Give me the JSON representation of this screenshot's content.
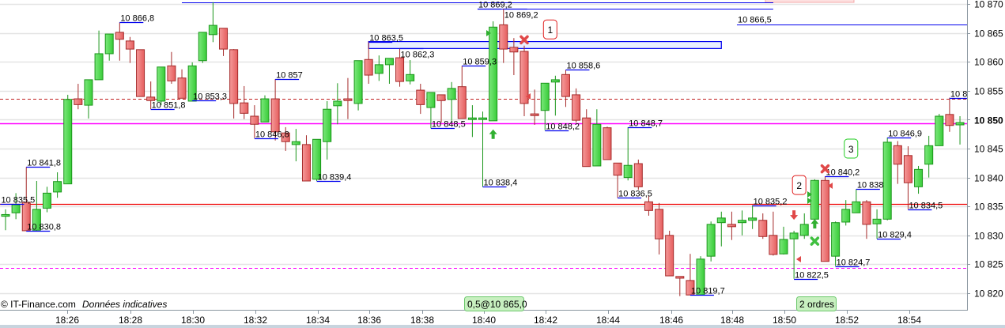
{
  "chart_data": {
    "type": "candlestick",
    "title": "",
    "ylim": [
      10817,
      10870.5
    ],
    "grid": true,
    "y_ticks": [
      "10 870",
      "10 865",
      "10 860",
      "10 855",
      "10 850",
      "10 845",
      "10 840",
      "10 835",
      "10 830",
      "10 825",
      "10 820"
    ],
    "y_tick_values": [
      10870,
      10865,
      10860,
      10855,
      10850,
      10845,
      10840,
      10835,
      10830,
      10825,
      10820
    ],
    "current_price_label": "10 850",
    "x_ticks": [
      "18:26",
      "18:28",
      "18:30",
      "18:32",
      "18:34",
      "18:36",
      "18:38",
      "18:40",
      "18:42",
      "18:44",
      "18:46",
      "18:48",
      "18:50",
      "18:52",
      "18:54"
    ],
    "candles_ohlc": [
      [
        10833.3,
        10834.5,
        10830.9,
        10833.6
      ],
      [
        10833.9,
        10837.3,
        10832.8,
        10835.3
      ],
      [
        10835.7,
        10841.8,
        10830.8,
        10830.8
      ],
      [
        10830.9,
        10839.4,
        10830.8,
        10834.5
      ],
      [
        10834.7,
        10838.4,
        10834.0,
        10837.3
      ],
      [
        10837.5,
        10840.9,
        10836.5,
        10839.3
      ],
      [
        10838.9,
        10854.3,
        10838.9,
        10853.5
      ],
      [
        10853.6,
        10856.2,
        10851.8,
        10852.6
      ],
      [
        10852.5,
        10856.9,
        10850.2,
        10856.9
      ],
      [
        10856.9,
        10865.4,
        10856.9,
        10861.4
      ],
      [
        10861.4,
        10864.8,
        10860.2,
        10864.8
      ],
      [
        10865.1,
        10866.8,
        10860.2,
        10863.9
      ],
      [
        10863.6,
        10864.3,
        10859.8,
        10862.2
      ],
      [
        10862.1,
        10862.1,
        10854.0,
        10854.0
      ],
      [
        10853.9,
        10856.6,
        10851.8,
        10853.3
      ],
      [
        10853.2,
        10859.1,
        10852.5,
        10859.1
      ],
      [
        10859.3,
        10861.7,
        10856.2,
        10856.7
      ],
      [
        10857.2,
        10858.7,
        10853.7,
        10853.7
      ],
      [
        10853.2,
        10859.9,
        10853.2,
        10859.3
      ],
      [
        10860.2,
        10865.1,
        10859.8,
        10865.1
      ],
      [
        10864.7,
        10870.3,
        10863.4,
        10866.3
      ],
      [
        10865.8,
        10865.8,
        10861.0,
        10862.2
      ],
      [
        10862.1,
        10862.2,
        10850.2,
        10852.8
      ],
      [
        10852.9,
        10855.8,
        10850.1,
        10851.1
      ],
      [
        10850.6,
        10852.5,
        10846.8,
        10849.2
      ],
      [
        10849.6,
        10854.2,
        10849.6,
        10853.6
      ],
      [
        10853.6,
        10857.0,
        10846.4,
        10847.9
      ],
      [
        10847.7,
        10848.7,
        10844.6,
        10846.2
      ],
      [
        10845.7,
        10848.4,
        10842.8,
        10846.2
      ],
      [
        10845.7,
        10847.3,
        10839.4,
        10839.4
      ],
      [
        10839.7,
        10846.6,
        10839.4,
        10846.6
      ],
      [
        10846.2,
        10853.2,
        10843.1,
        10851.8
      ],
      [
        10852.4,
        10856.3,
        10849.2,
        10853.2
      ],
      [
        10853.6,
        10857.2,
        10850.1,
        10853.3
      ],
      [
        10852.8,
        10860.2,
        10851.6,
        10860.2
      ],
      [
        10860.4,
        10863.5,
        10856.2,
        10857.7
      ],
      [
        10858.0,
        10861.1,
        10856.7,
        10859.5
      ],
      [
        10859.5,
        10860.6,
        10856.2,
        10860.6
      ],
      [
        10860.7,
        10862.3,
        10855.7,
        10856.6
      ],
      [
        10856.7,
        10860.3,
        10856.1,
        10857.8
      ],
      [
        10855.1,
        10856.2,
        10851.0,
        10852.6
      ],
      [
        10852.1,
        10854.7,
        10848.5,
        10854.7
      ],
      [
        10854.3,
        10854.3,
        10849.5,
        10853.3
      ],
      [
        10853.5,
        10856.5,
        10849.8,
        10855.4
      ],
      [
        10855.7,
        10859.3,
        10850.2,
        10850.2
      ],
      [
        10850.1,
        10852.5,
        10847.0,
        10850.3
      ],
      [
        10850.1,
        10851.4,
        10838.4,
        10850.3
      ],
      [
        10849.8,
        10867.0,
        10849.8,
        10866.0
      ],
      [
        10866.4,
        10869.2,
        10859.8,
        10862.2
      ],
      [
        10862.5,
        10864.1,
        10857.7,
        10861.7
      ],
      [
        10861.8,
        10862.8,
        10850.6,
        10852.8
      ],
      [
        10851.0,
        10855.2,
        10849.1,
        10850.7
      ],
      [
        10851.6,
        10856.3,
        10848.2,
        10856.3
      ],
      [
        10856.5,
        10857.6,
        10850.7,
        10856.9
      ],
      [
        10857.8,
        10858.6,
        10852.2,
        10854.0
      ],
      [
        10854.3,
        10855.4,
        10849.5,
        10849.9
      ],
      [
        10850.3,
        10851.8,
        10841.9,
        10841.9
      ],
      [
        10842.0,
        10851.8,
        10842.0,
        10849.2
      ],
      [
        10848.6,
        10848.8,
        10843.1,
        10843.1
      ],
      [
        10842.5,
        10842.5,
        10836.5,
        10840.4
      ],
      [
        10840.0,
        10848.7,
        10839.5,
        10842.1
      ],
      [
        10842.4,
        10843.1,
        10837.9,
        10838.4
      ],
      [
        10835.8,
        10836.8,
        10833.4,
        10834.3
      ],
      [
        10834.5,
        10835.6,
        10826.7,
        10829.4
      ],
      [
        10830.0,
        10830.8,
        10823.0,
        10823.0
      ],
      [
        10822.9,
        10822.9,
        10819.5,
        10822.6
      ],
      [
        10822.2,
        10826.8,
        10819.7,
        10819.7
      ],
      [
        10819.7,
        10826.4,
        10819.7,
        10825.9
      ],
      [
        10826.4,
        10832.4,
        10825.5,
        10831.9
      ],
      [
        10832.2,
        10834.1,
        10828.1,
        10833.0
      ],
      [
        10831.9,
        10834.1,
        10829.2,
        10831.5
      ],
      [
        10832.2,
        10834.3,
        10830.0,
        10832.6
      ],
      [
        10832.6,
        10835.2,
        10831.1,
        10833.0
      ],
      [
        10832.6,
        10833.8,
        10829.4,
        10829.8
      ],
      [
        10830.0,
        10834.1,
        10826.5,
        10826.7
      ],
      [
        10826.8,
        10831.5,
        10826.7,
        10829.3
      ],
      [
        10829.4,
        10830.8,
        10822.5,
        10830.4
      ],
      [
        10830.0,
        10833.8,
        10829.4,
        10831.9
      ],
      [
        10832.8,
        10839.7,
        10832.8,
        10839.5
      ],
      [
        10839.5,
        10840.2,
        10825.5,
        10825.5
      ],
      [
        10826.4,
        10832.4,
        10824.7,
        10832.2
      ],
      [
        10832.3,
        10836.1,
        10831.7,
        10834.5
      ],
      [
        10833.9,
        10838.0,
        10833.9,
        10835.8
      ],
      [
        10835.8,
        10836.1,
        10829.4,
        10831.9
      ],
      [
        10832.0,
        10834.5,
        10829.4,
        10832.8
      ],
      [
        10832.8,
        10846.9,
        10832.6,
        10846.1
      ],
      [
        10845.5,
        10846.3,
        10838.9,
        10842.3
      ],
      [
        10843.8,
        10845.4,
        10834.5,
        10839.1
      ],
      [
        10838.4,
        10842.0,
        10837.2,
        10841.4
      ],
      [
        10842.3,
        10847.2,
        10840.0,
        10845.5
      ],
      [
        10845.5,
        10851.0,
        10845.5,
        10850.6
      ],
      [
        10850.9,
        10853.8,
        10847.9,
        10849.0
      ],
      [
        10849.1,
        10850.6,
        10845.7,
        10849.5
      ]
    ],
    "levels": [
      {
        "price": 10869.2,
        "style": "blue",
        "from_candle": 45.5,
        "to_candle": 74
      },
      {
        "price": 10866.5,
        "label": "10 866,5",
        "style": "blue",
        "from_candle": 70.5,
        "to_candle": null
      },
      {
        "price": 10853.6,
        "style": "red-dashed",
        "from_candle": null,
        "to_candle": null
      },
      {
        "price": 10849.4,
        "style": "magenta",
        "from_candle": null,
        "to_candle": null
      },
      {
        "price": 10835.4,
        "style": "red",
        "from_candle": null,
        "to_candle": null
      },
      {
        "price": 10824.4,
        "style": "magenta-dashed",
        "from_candle": null,
        "to_candle": null
      }
    ],
    "zone": {
      "high": 10863.5,
      "low": 10862.3,
      "from_candle": 35,
      "to_candle": 69
    },
    "swing_labels": [
      {
        "text": "10 835,5",
        "price": 10835.5,
        "candle": -0.5
      },
      {
        "text": "10 841,8",
        "price": 10841.8,
        "candle": 2
      },
      {
        "text": "10 830,8",
        "price": 10830.8,
        "candle": 2
      },
      {
        "text": "10 866,8",
        "price": 10866.8,
        "candle": 11
      },
      {
        "text": "10 851,8",
        "price": 10851.8,
        "candle": 14
      },
      {
        "text": "10 853,3",
        "price": 10853.3,
        "candle": 18
      },
      {
        "text": "10 846,8",
        "price": 10846.8,
        "candle": 24
      },
      {
        "text": "10 857",
        "price": 10857,
        "candle": 26
      },
      {
        "text": "10 839,4",
        "price": 10839.4,
        "candle": 30
      },
      {
        "text": "10 863,5",
        "price": 10863.5,
        "candle": 35
      },
      {
        "text": "10 862,3",
        "price": 10862.3,
        "candle": 38
      },
      {
        "text": "10 848,5",
        "price": 10848.5,
        "candle": 41
      },
      {
        "text": "10 859,3",
        "price": 10859.3,
        "candle": 44
      },
      {
        "text": "10 838,4",
        "price": 10838.4,
        "candle": 46
      },
      {
        "text": "10 869,2",
        "price": 10869.2,
        "candle": 45.5
      },
      {
        "text": "10 869,2",
        "price": 10869.2,
        "candle": 48
      },
      {
        "text": "10 848,2",
        "price": 10848.2,
        "candle": 52
      },
      {
        "text": "10 858,6",
        "price": 10858.6,
        "candle": 54
      },
      {
        "text": "10 836,5",
        "price": 10836.5,
        "candle": 59
      },
      {
        "text": "10 848,7",
        "price": 10848.7,
        "candle": 60
      },
      {
        "text": "10 819,7",
        "price": 10819.7,
        "candle": 66
      },
      {
        "text": "10 835,2",
        "price": 10835.2,
        "candle": 72
      },
      {
        "text": "10 822,5",
        "price": 10822.5,
        "candle": 76
      },
      {
        "text": "10 840,2",
        "price": 10840.2,
        "candle": 79
      },
      {
        "text": "10 824,7",
        "price": 10824.7,
        "candle": 80
      },
      {
        "text": "10 838",
        "price": 10838,
        "candle": 82
      },
      {
        "text": "10 829,4",
        "price": 10829.4,
        "candle": 84
      },
      {
        "text": "10 846,9",
        "price": 10846.9,
        "candle": 85
      },
      {
        "text": "10 834,5",
        "price": 10834.5,
        "candle": 87
      },
      {
        "text": "10 8",
        "price": 10853.8,
        "candle": 91
      }
    ],
    "markers": [
      {
        "type": "box-label",
        "text": "1",
        "color": "#e02020",
        "candle": 52.5,
        "price": 10865.6
      },
      {
        "type": "box-label",
        "text": "2",
        "color": "#e02020",
        "candle": 76.5,
        "price": 10838.7
      },
      {
        "type": "box-label",
        "text": "3",
        "color": "#22cc22",
        "candle": 81.5,
        "price": 10845
      },
      {
        "type": "cross",
        "color": "#e04848",
        "candle": 50,
        "price": 10863.8
      },
      {
        "type": "cross",
        "color": "#e04848",
        "candle": 79,
        "price": 10841.5
      },
      {
        "type": "cross",
        "color": "#40c040",
        "candle": 78,
        "price": 10829
      },
      {
        "type": "arrow-up",
        "color": "#30b030",
        "candle": 47,
        "price": 10847.5
      },
      {
        "type": "arrow-up",
        "color": "#30b030",
        "candle": 78,
        "price": 10832
      },
      {
        "type": "arrow-down",
        "color": "#e04848",
        "candle": 76,
        "price": 10833.5
      }
    ]
  },
  "footer": {
    "copyright": "© IT-Finance.com",
    "disclaimer": "Données indicatives",
    "order_badge": "0,5@10 865,0",
    "orders_badge": "2 ordres"
  },
  "colors": {
    "up": "#3fd03f",
    "down": "#ee6f6f",
    "up_border": "#1a961a",
    "down_border": "#a52a2a",
    "level_blue": "#0000ee",
    "magenta": "#ff00ff",
    "red": "#ee0000"
  }
}
